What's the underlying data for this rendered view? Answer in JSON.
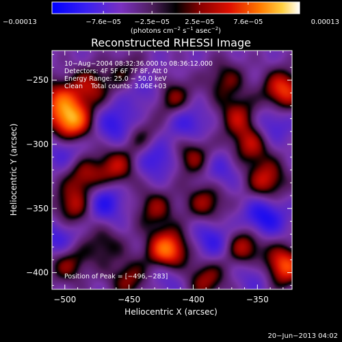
{
  "chart_data": {
    "type": "heatmap",
    "title": "Reconstructed RHESSI Image",
    "xlabel": "Heliocentric X (arcsec)",
    "ylabel": "Heliocentric Y (arcsec)",
    "xlim": [
      -510,
      -323
    ],
    "ylim": [
      -413,
      -227
    ],
    "x_ticks": [
      -500,
      -450,
      -400,
      -350
    ],
    "y_ticks": [
      -250,
      -300,
      -350,
      -400
    ],
    "x_tick_labels": [
      "−500",
      "−450",
      "−400",
      "−350"
    ],
    "y_tick_labels": [
      "−250",
      "−300",
      "−350",
      "−400"
    ],
    "colorbar": {
      "range": [
        -0.00013,
        0.00013
      ],
      "tick_values": [
        -0.00013,
        -7.6e-05,
        -2.5e-05,
        2.5e-05,
        7.6e-05,
        0.00013
      ],
      "tick_labels": [
        "−0.00013",
        "−7.6e−05",
        "−2.5e−05",
        "2.5e−05",
        "7.6e−05",
        "0.00013"
      ],
      "unit_parts": [
        "(photons cm",
        "−2",
        " s",
        "−1",
        " asec",
        "−2",
        ")"
      ],
      "colormap": [
        "#0000ff",
        "#6a2fd0",
        "#8a3aa0",
        "#000000",
        "#c00000",
        "#ff4000",
        "#ffb000",
        "#ffffff"
      ]
    },
    "annotations": [
      "10−Aug−2004 08:32:36.000 to 08:36:12.000",
      "Detectors: 4F 5F 6F 7F 8F, Att 0",
      "Energy Range: 25.0 − 50.0 keV",
      "Clean    Total counts: 3.06E+03"
    ],
    "peak_label": "Position of Peak = [−496,−283]",
    "blobs": [
      {
        "x": -495,
        "y": -282,
        "v": 1.0
      },
      {
        "x": -420,
        "y": -383,
        "v": 1.0
      },
      {
        "x": -330,
        "y": -395,
        "v": 0.85
      },
      {
        "x": -330,
        "y": -258,
        "v": 0.75
      },
      {
        "x": -343,
        "y": -328,
        "v": 0.6
      },
      {
        "x": -355,
        "y": -300,
        "v": 0.55
      },
      {
        "x": -365,
        "y": -278,
        "v": 0.5
      },
      {
        "x": -360,
        "y": -380,
        "v": 0.6
      },
      {
        "x": -390,
        "y": -345,
        "v": 0.5
      },
      {
        "x": -400,
        "y": -310,
        "v": 0.5
      },
      {
        "x": -415,
        "y": -265,
        "v": 0.5
      },
      {
        "x": -440,
        "y": -295,
        "v": 0.4
      },
      {
        "x": -460,
        "y": -318,
        "v": 0.55
      },
      {
        "x": -493,
        "y": -348,
        "v": 0.55
      },
      {
        "x": -485,
        "y": -325,
        "v": 0.5
      },
      {
        "x": -498,
        "y": -392,
        "v": 0.5
      },
      {
        "x": -470,
        "y": -378,
        "v": 0.35
      },
      {
        "x": -450,
        "y": -405,
        "v": 0.45
      },
      {
        "x": -480,
        "y": -255,
        "v": 0.5
      },
      {
        "x": -450,
        "y": -245,
        "v": 0.4
      },
      {
        "x": -505,
        "y": -265,
        "v": 0.6
      },
      {
        "x": -430,
        "y": -350,
        "v": 0.45
      },
      {
        "x": -390,
        "y": -405,
        "v": 0.5
      },
      {
        "x": -375,
        "y": -250,
        "v": 0.4
      },
      {
        "x": -460,
        "y": -285,
        "v": -0.45
      },
      {
        "x": -470,
        "y": -345,
        "v": -0.5
      },
      {
        "x": -345,
        "y": -357,
        "v": -0.55
      },
      {
        "x": -430,
        "y": -310,
        "v": -0.45
      },
      {
        "x": -505,
        "y": -375,
        "v": -0.4
      },
      {
        "x": -405,
        "y": -282,
        "v": -0.4
      },
      {
        "x": -440,
        "y": -255,
        "v": -0.35
      },
      {
        "x": -385,
        "y": -375,
        "v": -0.4
      },
      {
        "x": -350,
        "y": -400,
        "v": -0.3
      },
      {
        "x": -420,
        "y": -400,
        "v": -0.3
      },
      {
        "x": -500,
        "y": -305,
        "v": -0.3
      },
      {
        "x": -340,
        "y": -285,
        "v": -0.35
      },
      {
        "x": -380,
        "y": -320,
        "v": -0.3
      }
    ]
  },
  "footer": {
    "date": "20−Jun−2013 04:02"
  }
}
